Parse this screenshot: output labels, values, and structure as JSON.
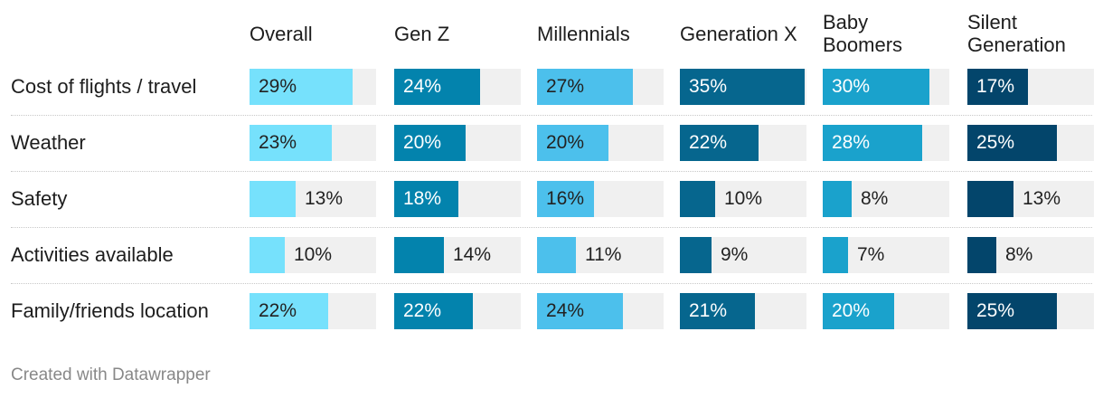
{
  "chart_data": {
    "type": "table",
    "title": "",
    "columns": [
      "Overall",
      "Gen Z",
      "Millennials",
      "Generation X",
      "Baby Boomers",
      "Silent Generation"
    ],
    "column_colors": [
      "#76e1fc",
      "#0383ad",
      "#4cc0ec",
      "#06668e",
      "#1aa2cc",
      "#03456b"
    ],
    "column_text_colors": [
      "#222222",
      "#ffffff",
      "#222222",
      "#ffffff",
      "#ffffff",
      "#ffffff"
    ],
    "rows": [
      {
        "label": "Cost of flights / travel",
        "values": [
          29,
          24,
          27,
          35,
          30,
          17
        ]
      },
      {
        "label": "Weather",
        "values": [
          23,
          20,
          20,
          22,
          28,
          25
        ]
      },
      {
        "label": "Safety",
        "values": [
          13,
          18,
          16,
          10,
          8,
          13
        ]
      },
      {
        "label": "Activities available",
        "values": [
          10,
          14,
          11,
          9,
          7,
          8
        ]
      },
      {
        "label": "Family/friends location",
        "values": [
          22,
          22,
          24,
          21,
          20,
          25
        ]
      }
    ],
    "max_value": 35,
    "unit": "%"
  },
  "footer": "Created with Datawrapper"
}
